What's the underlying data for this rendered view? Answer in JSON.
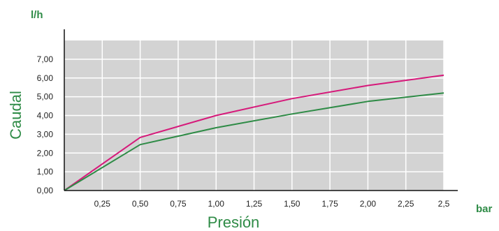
{
  "colors": {
    "plot_background": "#d3d3d3",
    "grid": "#ffffff",
    "axis": "#111111",
    "accent_green": "#2e8b46",
    "series_magenta": "#d6197a",
    "series_green": "#2e8b46"
  },
  "chart_data": {
    "type": "line",
    "xlabel": "Presión",
    "ylabel": "Caudal",
    "x_unit": "bar",
    "y_unit": "l/h",
    "xlim": [
      0,
      2.5
    ],
    "ylim": [
      0,
      8
    ],
    "grid": true,
    "x_ticks": [
      0.25,
      0.5,
      0.75,
      1.0,
      1.25,
      1.5,
      1.75,
      2.0,
      2.25,
      2.5
    ],
    "x_tick_labels": [
      "0,25",
      "0,50",
      "0,75",
      "1,00",
      "1,25",
      "1,50",
      "1,75",
      "2,00",
      "2,25",
      "2,5"
    ],
    "y_ticks": [
      0,
      1,
      2,
      3,
      4,
      5,
      6,
      7
    ],
    "y_tick_labels": [
      "0,00",
      "1,00",
      "2,00",
      "3,00",
      "4,00",
      "5,00",
      "6,00",
      "7,00"
    ],
    "x": [
      0,
      0.5,
      1.0,
      1.5,
      2.0,
      2.5
    ],
    "series": [
      {
        "values": [
          0,
          2.83,
          4.0,
          4.9,
          5.6,
          6.15
        ],
        "color": "#d6197a"
      },
      {
        "values": [
          0,
          2.45,
          3.35,
          4.08,
          4.75,
          5.2
        ],
        "color": "#2e8b46"
      }
    ]
  }
}
